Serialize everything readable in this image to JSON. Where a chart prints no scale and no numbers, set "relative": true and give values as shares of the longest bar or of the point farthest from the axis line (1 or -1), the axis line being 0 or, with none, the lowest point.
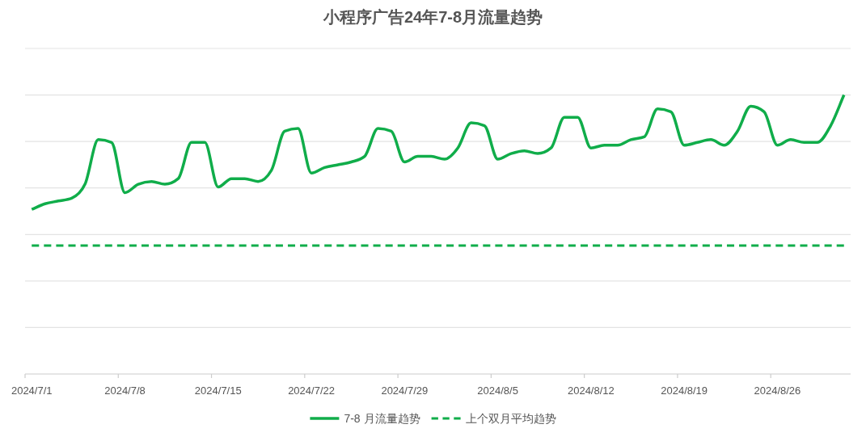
{
  "chart_data": {
    "type": "line",
    "title": "小程序广告24年7-8月流量趋势",
    "relative": true,
    "categories": [
      "2024/7/1",
      null,
      null,
      null,
      null,
      null,
      null,
      "2024/7/8",
      null,
      null,
      null,
      null,
      null,
      null,
      "2024/7/15",
      null,
      null,
      null,
      null,
      null,
      null,
      "2024/7/22",
      null,
      null,
      null,
      null,
      null,
      null,
      "2024/7/29",
      null,
      null,
      null,
      null,
      null,
      null,
      "2024/8/5",
      null,
      null,
      null,
      null,
      null,
      null,
      "2024/8/12",
      null,
      null,
      null,
      null,
      null,
      null,
      "2024/8/19",
      null,
      null,
      null,
      null,
      null,
      null,
      "2024/8/26",
      null,
      null,
      null,
      null,
      null
    ],
    "series": [
      {
        "name": "7-8 月流量趋势",
        "color": "#10ad4a",
        "line_style": "solid",
        "values": [
          0.59,
          0.61,
          0.62,
          0.63,
          0.68,
          0.84,
          0.83,
          0.65,
          0.68,
          0.69,
          0.68,
          0.7,
          0.83,
          0.83,
          0.67,
          0.7,
          0.7,
          0.69,
          0.73,
          0.87,
          0.88,
          0.72,
          0.74,
          0.75,
          0.76,
          0.78,
          0.88,
          0.87,
          0.76,
          0.78,
          0.78,
          0.77,
          0.81,
          0.9,
          0.89,
          0.77,
          0.79,
          0.8,
          0.79,
          0.81,
          0.92,
          0.92,
          0.81,
          0.82,
          0.82,
          0.84,
          0.85,
          0.95,
          0.94,
          0.82,
          0.83,
          0.84,
          0.82,
          0.87,
          0.96,
          0.94,
          0.82,
          0.84,
          0.83,
          0.83,
          0.89,
          1
        ]
      },
      {
        "name": "上个双月平均趋势",
        "color": "#10ad4a",
        "line_style": "dashed",
        "values": [
          0.46,
          0.46,
          0.46,
          0.46,
          0.46,
          0.46,
          0.46,
          0.46,
          0.46,
          0.46,
          0.46,
          0.46,
          0.46,
          0.46,
          0.46,
          0.46,
          0.46,
          0.46,
          0.46,
          0.46,
          0.46,
          0.46,
          0.46,
          0.46,
          0.46,
          0.46,
          0.46,
          0.46,
          0.46,
          0.46,
          0.46,
          0.46,
          0.46,
          0.46,
          0.46,
          0.46,
          0.46,
          0.46,
          0.46,
          0.46,
          0.46,
          0.46,
          0.46,
          0.46,
          0.46,
          0.46,
          0.46,
          0.46,
          0.46,
          0.46,
          0.46,
          0.46,
          0.46,
          0.46,
          0.46,
          0.46,
          0.46,
          0.46,
          0.46,
          0.46,
          0.46,
          0.46
        ]
      }
    ],
    "grid": "y",
    "legend": "bottom"
  }
}
